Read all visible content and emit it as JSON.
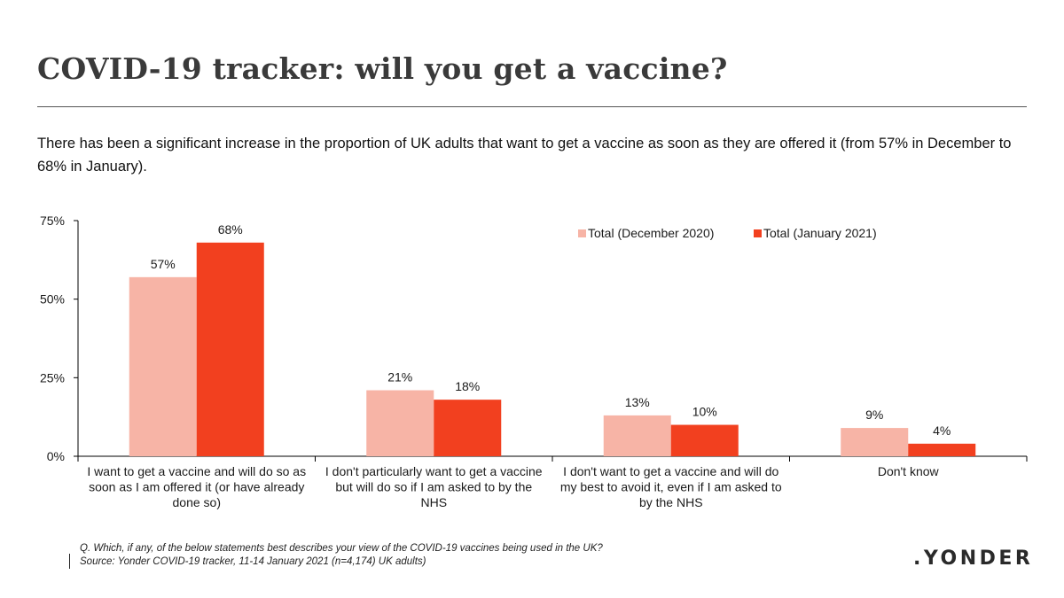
{
  "header": {
    "title": "COVID-19 tracker: will you get a vaccine?",
    "subtitle": "There has been a significant increase in the proportion of UK adults that want to get a vaccine as soon as they are offered it (from 57% in December to 68% in January)."
  },
  "footer": {
    "question": "Q. Which, if any, of the below statements best describes your view of the COVID-19 vaccines being used in the UK?",
    "source": "Source: Yonder COVID-19 tracker, 11-14 January 2021 (n=4,174) UK adults)",
    "logo": ".YONDER"
  },
  "colors": {
    "december": "#f7b4a6",
    "january": "#f2401f",
    "axis": "#000000"
  },
  "chart_data": {
    "type": "bar",
    "title": "",
    "xlabel": "",
    "ylabel": "",
    "ylim": [
      0,
      75
    ],
    "yticks": [
      0,
      25,
      50,
      75
    ],
    "ytick_labels": [
      "0%",
      "25%",
      "50%",
      "75%"
    ],
    "grid": false,
    "legend_position": "top-right",
    "categories": [
      [
        "I want to get a vaccine and will do so as",
        "soon as I am offered it (or have already",
        "done so)"
      ],
      [
        "I don't particularly want to get a vaccine",
        "but will do so if I am asked to by the",
        "NHS"
      ],
      [
        "I don't want to get a vaccine and will do",
        "my best to avoid it, even if I am asked to",
        "by the NHS"
      ],
      [
        "Don't know"
      ]
    ],
    "series": [
      {
        "name": "Total (December 2020)",
        "values": [
          57,
          21,
          13,
          9
        ],
        "labels": [
          "57%",
          "21%",
          "13%",
          "9%"
        ]
      },
      {
        "name": "Total (January 2021)",
        "values": [
          68,
          18,
          10,
          4
        ],
        "labels": [
          "68%",
          "18%",
          "10%",
          "4%"
        ]
      }
    ]
  }
}
